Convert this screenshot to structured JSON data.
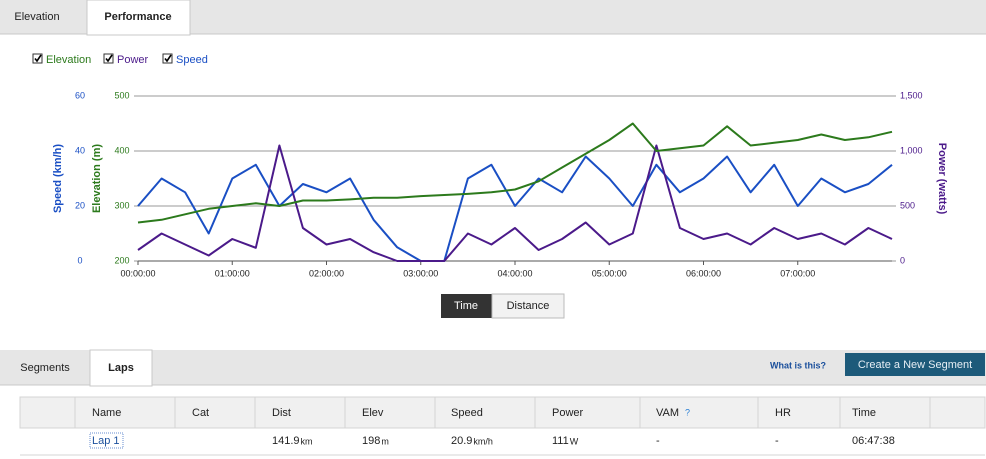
{
  "tabs": [
    "Elevation",
    "Performance"
  ],
  "chart_data": {
    "type": "line",
    "x": [
      0,
      900,
      1800,
      2700,
      3600,
      4500,
      5400,
      6300,
      7200,
      8100,
      9000,
      9900,
      10800,
      11700,
      12600,
      13500,
      14400,
      15300,
      16200,
      17100,
      18000,
      18900,
      19800,
      20700,
      21600,
      22500,
      23400,
      24300,
      25200,
      26100,
      27000,
      27900,
      28800
    ],
    "xlim": [
      0,
      28800
    ],
    "xticks": [
      {
        "value": 0,
        "label": "00:00:00"
      },
      {
        "value": 3600,
        "label": "01:00:00"
      },
      {
        "value": 7200,
        "label": "02:00:00"
      },
      {
        "value": 10800,
        "label": "03:00:00"
      },
      {
        "value": 14400,
        "label": "04:00:00"
      },
      {
        "value": 18000,
        "label": "05:00:00"
      },
      {
        "value": 21600,
        "label": "06:00:00"
      },
      {
        "value": 25200,
        "label": "07:00:00"
      }
    ],
    "ylabel": "Elevation (m)",
    "ylim": [
      200,
      500
    ],
    "yticks": [
      200,
      300,
      400,
      500
    ],
    "y2label": "Power (watts)",
    "y2lim": [
      0,
      1500
    ],
    "y2ticks": [
      0,
      500,
      {
        "value": 1000,
        "label": "1,000"
      },
      {
        "value": 1500,
        "label": "1,500"
      }
    ],
    "y3label": "Speed (km/h)",
    "y3lim": [
      0,
      60
    ],
    "y3ticks": [
      0,
      20,
      40,
      60
    ],
    "grid": true,
    "series": [
      {
        "name": "Elevation",
        "color": "#2c7a1c",
        "axis": "y",
        "values": [
          270,
          275,
          285,
          295,
          300,
          305,
          300,
          310,
          310,
          312,
          315,
          315,
          318,
          320,
          322,
          325,
          330,
          345,
          370,
          395,
          420,
          450,
          400,
          405,
          410,
          445,
          410,
          415,
          420,
          430,
          420,
          425,
          435
        ]
      },
      {
        "name": "Power",
        "color": "#4b1a8a",
        "axis": "y2",
        "values": [
          100,
          250,
          150,
          50,
          200,
          120,
          1050,
          300,
          150,
          200,
          80,
          0,
          0,
          0,
          250,
          150,
          300,
          100,
          200,
          350,
          150,
          250,
          1050,
          300,
          200,
          250,
          150,
          300,
          200,
          250,
          150,
          300,
          200
        ]
      },
      {
        "name": "Speed",
        "color": "#1a4fc4",
        "axis": "y3",
        "values": [
          20,
          30,
          25,
          10,
          30,
          35,
          20,
          28,
          25,
          30,
          15,
          5,
          0,
          0,
          30,
          35,
          20,
          30,
          25,
          38,
          30,
          20,
          35,
          25,
          30,
          38,
          25,
          35,
          20,
          30,
          25,
          28,
          35
        ]
      }
    ]
  },
  "toggle": [
    "Time",
    "Distance"
  ],
  "lower_tabs": [
    "Segments",
    "Laps"
  ],
  "help_link": "What is this?",
  "create_button": "Create a New Segment",
  "table": {
    "headers": [
      "Name",
      "Cat",
      "Dist",
      "Elev",
      "Speed",
      "Power",
      "VAM",
      "HR",
      "Time"
    ],
    "vam_help": "?",
    "rows": [
      {
        "name": "Lap 1",
        "dist": {
          "value": "141.9",
          "unit": "km"
        },
        "elev": {
          "value": "198",
          "unit": "m"
        },
        "speed": {
          "value": "20.9",
          "unit": "km/h"
        },
        "power": {
          "value": "111",
          "unit": "W"
        },
        "vam": "-",
        "hr": "-",
        "time": "06:47:38"
      }
    ]
  }
}
